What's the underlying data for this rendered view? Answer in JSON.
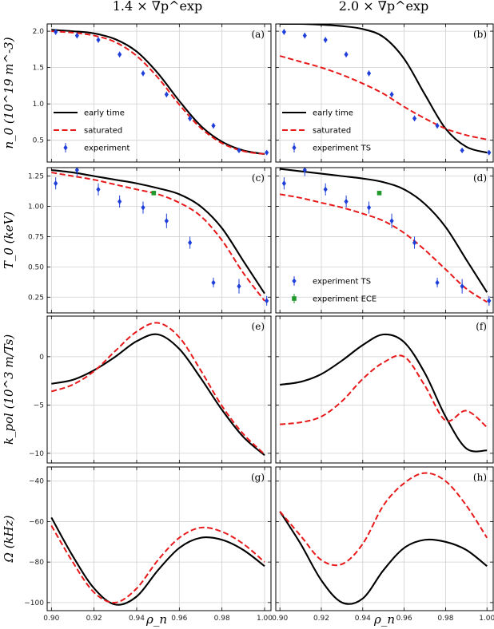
{
  "figure": {
    "column_titles": [
      "1.4 × ∇p^exp",
      "2.0 × ∇p^exp"
    ],
    "xlabel": "ρ_n",
    "x_ticks": [
      0.9,
      0.92,
      0.94,
      0.96,
      0.98,
      1.0
    ],
    "xlim": [
      0.898,
      1.003
    ]
  },
  "styles": {
    "early": "#000000",
    "saturated": "#e8191a",
    "ts": "#1f3fd8",
    "ece": "#1f9a2a"
  },
  "chart_data": [
    {
      "type": "line",
      "panel": "(a)",
      "title": "",
      "ylabel": "n_0 (10^19 m^-3)",
      "ylim": [
        0.2,
        2.1
      ],
      "yticks": [
        0.5,
        1.0,
        1.5,
        2.0
      ],
      "ytick_labels": [
        "0.5",
        "1.0",
        "1.5",
        "2.0"
      ],
      "legend": [
        {
          "name": "early time",
          "style": "early"
        },
        {
          "name": "saturated",
          "style": "saturated"
        },
        {
          "name": "experiment",
          "style": "ts"
        }
      ],
      "series": [
        {
          "name": "early time",
          "style": "early",
          "x": [
            0.9,
            0.91,
            0.92,
            0.93,
            0.94,
            0.95,
            0.96,
            0.97,
            0.98,
            0.99,
            1.0
          ],
          "y": [
            2.02,
            2.0,
            1.97,
            1.89,
            1.72,
            1.42,
            1.04,
            0.7,
            0.48,
            0.36,
            0.31
          ]
        },
        {
          "name": "saturated",
          "style": "saturated",
          "x": [
            0.9,
            0.91,
            0.92,
            0.93,
            0.94,
            0.95,
            0.96,
            0.97,
            0.98,
            0.99,
            1.0
          ],
          "y": [
            2.0,
            1.98,
            1.94,
            1.85,
            1.66,
            1.36,
            0.99,
            0.67,
            0.46,
            0.35,
            0.31
          ]
        }
      ],
      "points": [
        {
          "name": "experiment",
          "style": "ts",
          "marker": "diamond",
          "x": [
            0.902,
            0.912,
            0.922,
            0.932,
            0.943,
            0.954,
            0.965,
            0.976,
            0.988,
            1.001
          ],
          "y": [
            1.99,
            1.94,
            1.88,
            1.68,
            1.42,
            1.13,
            0.8,
            0.7,
            0.36,
            0.33
          ],
          "err": [
            0.04,
            0.04,
            0.04,
            0.04,
            0.04,
            0.04,
            0.04,
            0.04,
            0.03,
            0.03
          ]
        }
      ]
    },
    {
      "type": "line",
      "panel": "(b)",
      "title": "",
      "ylabel": "",
      "ylim": [
        0.2,
        2.1
      ],
      "yticks": [
        0.5,
        1.0,
        1.5,
        2.0
      ],
      "ytick_labels": [
        "",
        "",
        "",
        ""
      ],
      "legend": [
        {
          "name": "early time",
          "style": "early"
        },
        {
          "name": "saturated",
          "style": "saturated"
        },
        {
          "name": "experiment TS",
          "style": "ts"
        }
      ],
      "series": [
        {
          "name": "early time",
          "style": "early",
          "x": [
            0.9,
            0.91,
            0.92,
            0.93,
            0.94,
            0.95,
            0.96,
            0.97,
            0.98,
            0.99,
            1.0
          ],
          "y": [
            2.1,
            2.1,
            2.09,
            2.07,
            2.03,
            1.92,
            1.62,
            1.13,
            0.66,
            0.41,
            0.33
          ]
        },
        {
          "name": "saturated",
          "style": "saturated",
          "x": [
            0.9,
            0.91,
            0.92,
            0.93,
            0.94,
            0.95,
            0.96,
            0.97,
            0.98,
            0.99,
            1.0
          ],
          "y": [
            1.66,
            1.58,
            1.5,
            1.4,
            1.28,
            1.14,
            0.96,
            0.8,
            0.66,
            0.57,
            0.51
          ]
        }
      ],
      "points": [
        {
          "name": "experiment TS",
          "style": "ts",
          "marker": "diamond",
          "x": [
            0.902,
            0.912,
            0.922,
            0.932,
            0.943,
            0.954,
            0.965,
            0.976,
            0.988,
            1.001
          ],
          "y": [
            1.99,
            1.94,
            1.88,
            1.68,
            1.42,
            1.13,
            0.8,
            0.7,
            0.36,
            0.33
          ],
          "err": [
            0.04,
            0.04,
            0.04,
            0.04,
            0.04,
            0.04,
            0.04,
            0.04,
            0.03,
            0.03
          ]
        }
      ]
    },
    {
      "type": "line",
      "panel": "(c)",
      "title": "",
      "ylabel": "T_0 (keV)",
      "ylim": [
        0.12,
        1.32
      ],
      "yticks": [
        0.25,
        0.5,
        0.75,
        1.0,
        1.25
      ],
      "ytick_labels": [
        "0.25",
        "0.50",
        "0.75",
        "1.00",
        "1.25"
      ],
      "legend": [],
      "series": [
        {
          "name": "early time",
          "style": "early",
          "x": [
            0.9,
            0.91,
            0.92,
            0.93,
            0.94,
            0.95,
            0.96,
            0.97,
            0.98,
            0.99,
            1.0
          ],
          "y": [
            1.3,
            1.28,
            1.25,
            1.22,
            1.19,
            1.15,
            1.1,
            1.0,
            0.82,
            0.55,
            0.28
          ]
        },
        {
          "name": "saturated",
          "style": "saturated",
          "x": [
            0.9,
            0.91,
            0.92,
            0.93,
            0.94,
            0.95,
            0.96,
            0.97,
            0.98,
            0.99,
            1.0
          ],
          "y": [
            1.28,
            1.25,
            1.22,
            1.18,
            1.14,
            1.1,
            1.03,
            0.92,
            0.72,
            0.45,
            0.22
          ]
        }
      ],
      "points": [
        {
          "name": "experiment TS",
          "style": "ts",
          "marker": "diamond",
          "x": [
            0.902,
            0.912,
            0.922,
            0.932,
            0.943,
            0.954,
            0.965,
            0.976,
            0.988,
            1.001
          ],
          "y": [
            1.19,
            1.3,
            1.14,
            1.04,
            0.99,
            0.88,
            0.7,
            0.37,
            0.34,
            0.22
          ],
          "err": [
            0.05,
            0.05,
            0.05,
            0.05,
            0.05,
            0.06,
            0.05,
            0.04,
            0.06,
            0.04
          ]
        },
        {
          "name": "experiment ECE",
          "style": "ece",
          "marker": "square",
          "x": [
            0.948
          ],
          "y": [
            1.11
          ],
          "err": [
            0
          ]
        }
      ]
    },
    {
      "type": "line",
      "panel": "(d)",
      "title": "",
      "ylabel": "",
      "ylim": [
        0.12,
        1.32
      ],
      "yticks": [
        0.25,
        0.5,
        0.75,
        1.0,
        1.25
      ],
      "ytick_labels": [
        "",
        "",
        "",
        "",
        ""
      ],
      "legend": [
        {
          "name": "experiment TS",
          "style": "ts"
        },
        {
          "name": "experiment ECE",
          "style": "ece"
        }
      ],
      "series": [
        {
          "name": "early time",
          "style": "early",
          "x": [
            0.9,
            0.91,
            0.92,
            0.93,
            0.94,
            0.95,
            0.96,
            0.97,
            0.98,
            0.99,
            1.0
          ],
          "y": [
            1.31,
            1.29,
            1.27,
            1.25,
            1.23,
            1.2,
            1.14,
            1.02,
            0.83,
            0.56,
            0.29
          ]
        },
        {
          "name": "saturated",
          "style": "saturated",
          "x": [
            0.9,
            0.91,
            0.92,
            0.93,
            0.94,
            0.95,
            0.96,
            0.97,
            0.98,
            0.99,
            1.0
          ],
          "y": [
            1.1,
            1.07,
            1.03,
            0.99,
            0.94,
            0.88,
            0.78,
            0.64,
            0.48,
            0.32,
            0.21
          ]
        }
      ],
      "points": [
        {
          "name": "experiment TS",
          "style": "ts",
          "marker": "diamond",
          "x": [
            0.902,
            0.912,
            0.922,
            0.932,
            0.943,
            0.954,
            0.965,
            0.976,
            0.988,
            1.001
          ],
          "y": [
            1.19,
            1.3,
            1.14,
            1.04,
            0.99,
            0.88,
            0.7,
            0.37,
            0.34,
            0.22
          ],
          "err": [
            0.05,
            0.05,
            0.05,
            0.05,
            0.05,
            0.06,
            0.05,
            0.04,
            0.06,
            0.04
          ]
        },
        {
          "name": "experiment ECE",
          "style": "ece",
          "marker": "square",
          "x": [
            0.948
          ],
          "y": [
            1.11
          ],
          "err": [
            0
          ]
        }
      ]
    },
    {
      "type": "line",
      "panel": "(e)",
      "title": "",
      "ylabel": "k_pol (10^3 m/Ts)",
      "ylim": [
        -11,
        4.2
      ],
      "yticks": [
        -10,
        -5,
        0
      ],
      "ytick_labels": [
        "−10",
        "−5",
        "0"
      ],
      "legend": [],
      "series": [
        {
          "name": "early time",
          "style": "early",
          "x": [
            0.9,
            0.91,
            0.92,
            0.93,
            0.94,
            0.95,
            0.96,
            0.97,
            0.98,
            0.99,
            1.0
          ],
          "y": [
            -2.8,
            -2.4,
            -1.4,
            0.0,
            1.6,
            2.3,
            0.8,
            -2.2,
            -5.5,
            -8.3,
            -10.2
          ]
        },
        {
          "name": "saturated",
          "style": "saturated",
          "x": [
            0.9,
            0.91,
            0.92,
            0.93,
            0.94,
            0.95,
            0.96,
            0.97,
            0.98,
            0.99,
            1.0
          ],
          "y": [
            -3.6,
            -2.9,
            -1.5,
            0.6,
            2.6,
            3.5,
            2.0,
            -1.4,
            -5.1,
            -8.0,
            -10.1
          ]
        }
      ],
      "points": []
    },
    {
      "type": "line",
      "panel": "(f)",
      "title": "",
      "ylabel": "",
      "ylim": [
        -11,
        4.2
      ],
      "yticks": [
        -10,
        -5,
        0
      ],
      "ytick_labels": [
        "",
        "",
        ""
      ],
      "legend": [],
      "series": [
        {
          "name": "early time",
          "style": "early",
          "x": [
            0.9,
            0.91,
            0.92,
            0.93,
            0.94,
            0.95,
            0.96,
            0.97,
            0.98,
            0.99,
            1.0
          ],
          "y": [
            -2.9,
            -2.6,
            -1.8,
            -0.4,
            1.2,
            2.3,
            1.5,
            -1.7,
            -6.2,
            -9.5,
            -9.7
          ]
        },
        {
          "name": "saturated",
          "style": "saturated",
          "x": [
            0.9,
            0.91,
            0.92,
            0.93,
            0.94,
            0.95,
            0.96,
            0.97,
            0.98,
            0.99,
            1.0
          ],
          "y": [
            -7.0,
            -6.8,
            -6.2,
            -4.6,
            -2.3,
            -0.6,
            0.0,
            -3.0,
            -6.6,
            -5.6,
            -7.3
          ]
        }
      ],
      "points": []
    },
    {
      "type": "line",
      "panel": "(g)",
      "title": "",
      "ylabel": "Ω (kHz)",
      "ylim": [
        -104,
        -33
      ],
      "yticks": [
        -100,
        -80,
        -60,
        -40
      ],
      "ytick_labels": [
        "−100",
        "−80",
        "−60",
        "−40"
      ],
      "legend": [],
      "series": [
        {
          "name": "early time",
          "style": "early",
          "x": [
            0.9,
            0.91,
            0.92,
            0.93,
            0.94,
            0.95,
            0.96,
            0.97,
            0.98,
            0.99,
            1.0
          ],
          "y": [
            -58,
            -77,
            -93,
            -101,
            -97,
            -84,
            -73,
            -68,
            -69,
            -74,
            -82
          ]
        },
        {
          "name": "saturated",
          "style": "saturated",
          "x": [
            0.9,
            0.91,
            0.92,
            0.93,
            0.94,
            0.95,
            0.96,
            0.97,
            0.98,
            0.99,
            1.0
          ],
          "y": [
            -62,
            -80,
            -95,
            -100,
            -93,
            -79,
            -68,
            -63,
            -65,
            -71,
            -80
          ]
        }
      ],
      "points": []
    },
    {
      "type": "line",
      "panel": "(h)",
      "title": "",
      "ylabel": "",
      "ylim": [
        -104,
        -33
      ],
      "yticks": [
        -100,
        -80,
        -60,
        -40
      ],
      "ytick_labels": [
        "",
        "",
        "",
        ""
      ],
      "legend": [],
      "series": [
        {
          "name": "early time",
          "style": "early",
          "x": [
            0.9,
            0.91,
            0.92,
            0.93,
            0.94,
            0.95,
            0.96,
            0.97,
            0.98,
            0.99,
            1.0
          ],
          "y": [
            -55,
            -71,
            -89,
            -100,
            -98,
            -84,
            -73,
            -69,
            -70,
            -74,
            -82
          ]
        },
        {
          "name": "saturated",
          "style": "saturated",
          "x": [
            0.9,
            0.91,
            0.92,
            0.93,
            0.94,
            0.95,
            0.96,
            0.97,
            0.98,
            0.99,
            1.0
          ],
          "y": [
            -55,
            -67,
            -79,
            -81,
            -71,
            -52,
            -41,
            -36,
            -40,
            -52,
            -68
          ]
        }
      ],
      "points": []
    }
  ]
}
